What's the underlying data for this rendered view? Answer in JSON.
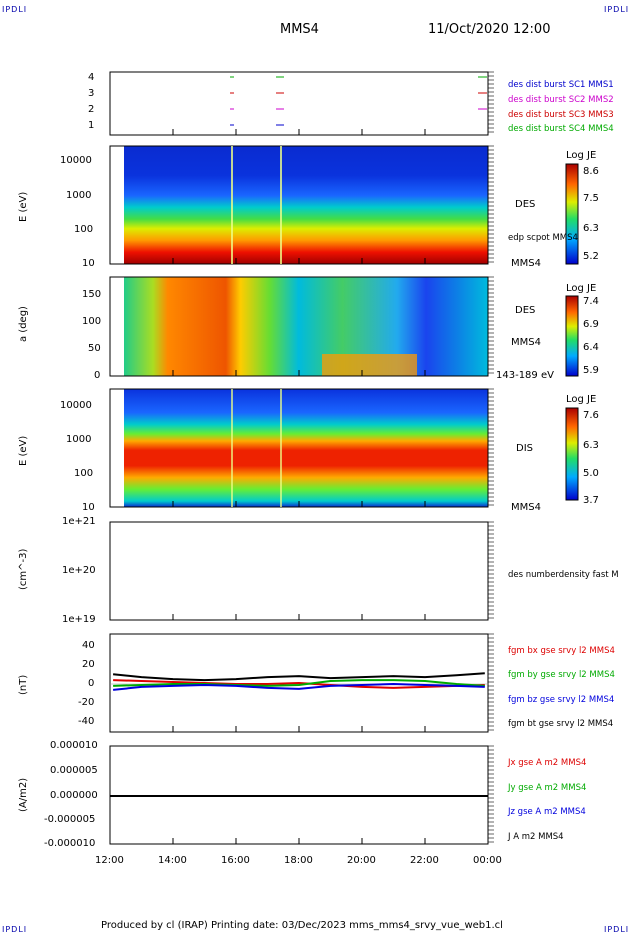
{
  "corner_label": "IPDLI",
  "header": {
    "spacecraft": "MMS4",
    "datetime": "11/Oct/2020 12:00"
  },
  "footer": {
    "text": "Produced by cl (IRAP)   Printing date: 03/Dec/2023   mms_mms4_srvy_vue_web1.cl"
  },
  "time_axis": {
    "ticks": [
      "12:00",
      "14:00",
      "16:00",
      "18:00",
      "20:00",
      "22:00",
      "00:00"
    ]
  },
  "panels": {
    "burst": {
      "yticks": [
        "4",
        "3",
        "2",
        "1"
      ],
      "legend": [
        {
          "text": "des dist burst SC1 MMS1",
          "color": "#0000cc"
        },
        {
          "text": "des dist burst SC2 MMS2",
          "color": "#cc00cc"
        },
        {
          "text": "des dist burst SC3 MMS3",
          "color": "#cc0000"
        },
        {
          "text": "des dist burst SC4 MMS4",
          "color": "#00aa00"
        }
      ]
    },
    "des_energy": {
      "ylabel": "E (eV)",
      "yticks": [
        "10000",
        "1000",
        "100",
        "10"
      ],
      "right1": "DES",
      "right2": "edp scpot MMS4",
      "right3": "MMS4",
      "cbar_title": "Log JE",
      "cbar_ticks": [
        "8.6",
        "7.5",
        "6.3",
        "5.2"
      ]
    },
    "des_pitch": {
      "ylabel": "a (deg)",
      "yticks": [
        "150",
        "100",
        "50",
        "0"
      ],
      "right1": "DES",
      "right2": "MMS4",
      "right3": "143-189 eV",
      "cbar_title": "Log JE",
      "cbar_ticks": [
        "7.4",
        "6.9",
        "6.4",
        "5.9"
      ]
    },
    "dis_energy": {
      "ylabel": "E (eV)",
      "yticks": [
        "10000",
        "1000",
        "100",
        "10"
      ],
      "right1": "DIS",
      "right2": "MMS4",
      "cbar_title": "Log JE",
      "cbar_ticks": [
        "7.6",
        "6.3",
        "5.0",
        "3.7"
      ]
    },
    "density": {
      "ylabel": "(cm^-3)",
      "yticks": [
        "1e+21",
        "1e+20",
        "1e+19"
      ],
      "right1": "des numberdensity fast M"
    },
    "fgm": {
      "ylabel": "(nT)",
      "yticks": [
        "40",
        "20",
        "0",
        "-20",
        "-40"
      ],
      "legend": [
        {
          "text": "fgm bx gse srvy l2 MMS4",
          "color": "#dd0000"
        },
        {
          "text": "fgm by gse srvy l2 MMS4",
          "color": "#00aa00"
        },
        {
          "text": "fgm bz gse srvy l2 MMS4",
          "color": "#0000dd"
        },
        {
          "text": "fgm bt gse srvy l2 MMS4",
          "color": "#000000"
        }
      ]
    },
    "current": {
      "ylabel": "(A/m2)",
      "yticks": [
        "0.000010",
        "0.000005",
        "0.000000",
        "-0.000005",
        "-0.000010"
      ],
      "legend": [
        {
          "text": "Jx gse A m2 MMS4",
          "color": "#dd0000"
        },
        {
          "text": "Jy gse A m2 MMS4",
          "color": "#00aa00"
        },
        {
          "text": "Jz gse A m2 MMS4",
          "color": "#0000dd"
        },
        {
          "text": "J A m2 MMS4",
          "color": "#000000"
        }
      ]
    }
  },
  "chart_data": {
    "type": "line",
    "x_range_hours": [
      12,
      24
    ],
    "fgm_series": [
      {
        "name": "fgm bx gse srvy l2 MMS4",
        "x": [
          12.1,
          13,
          14,
          15,
          16,
          17,
          18,
          19,
          20,
          21,
          22,
          23,
          23.9
        ],
        "values": [
          3,
          2,
          1,
          0,
          -1,
          -1,
          0,
          -2,
          -4,
          -5,
          -4,
          -3,
          -2
        ]
      },
      {
        "name": "fgm by gse srvy l2 MMS4",
        "x": [
          12.1,
          13,
          14,
          15,
          16,
          17,
          18,
          19,
          20,
          21,
          22,
          23,
          23.9
        ],
        "values": [
          -3,
          -2,
          -1,
          -1,
          -2,
          -3,
          -2,
          2,
          3,
          3,
          2,
          -1,
          -3
        ]
      },
      {
        "name": "fgm bz gse srvy l2 MMS4",
        "x": [
          12.1,
          13,
          14,
          15,
          16,
          17,
          18,
          19,
          20,
          21,
          22,
          23,
          23.9
        ],
        "values": [
          -7,
          -4,
          -3,
          -2,
          -3,
          -5,
          -6,
          -3,
          -2,
          -1,
          -2,
          -3,
          -4
        ]
      },
      {
        "name": "fgm bt gse srvy l2 MMS4",
        "x": [
          12.1,
          13,
          14,
          15,
          16,
          17,
          18,
          19,
          20,
          21,
          22,
          23,
          23.9
        ],
        "values": [
          9,
          6,
          4,
          3,
          4,
          6,
          7,
          5,
          6,
          7,
          6,
          8,
          10
        ]
      }
    ],
    "fgm_ylim": [
      -50,
      50
    ],
    "current_ylim": [
      -1e-05,
      1e-05
    ],
    "current_series_value": 0
  }
}
